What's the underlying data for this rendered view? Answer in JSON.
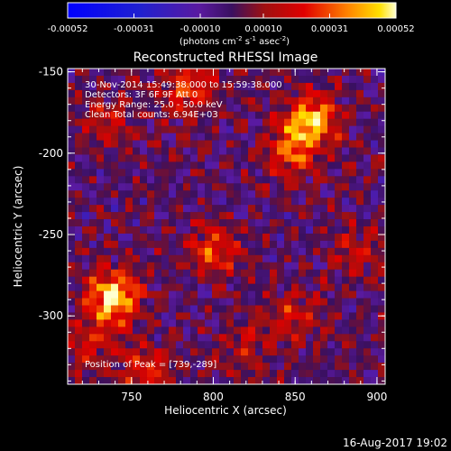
{
  "chart_data": {
    "type": "heatmap",
    "title": "Reconstructed RHESSI Image",
    "xlabel": "Heliocentric X (arcsec)",
    "ylabel": "Heliocentric Y (arcsec)",
    "xlim": [
      711,
      905
    ],
    "ylim": [
      -342,
      -148
    ],
    "xticks": [
      750,
      800,
      850,
      900
    ],
    "yticks": [
      -150,
      -200,
      -250,
      -300
    ],
    "colorbar": {
      "min": -0.00052,
      "max": 0.00052,
      "ticks": [
        "-0.00052",
        "-0.00031",
        "-0.00010",
        "0.00010",
        "0.00031",
        "0.00052"
      ],
      "unit_label": "(photons cm",
      "unit_exp1": "-2",
      "unit_mid": " s",
      "unit_exp2": "-1",
      "unit_mid2": " asec",
      "unit_exp3": "-2",
      "unit_close": ")"
    },
    "annotations": {
      "time": "30-Nov-2014 15:49:38.000 to 15:59:38.000",
      "detectors": "Detectors: 3F 6F 9F  Att 0",
      "energy": "Energy Range: 25.0 - 50.0 keV",
      "method": "Clean     Total counts: 6.94E+03",
      "peak": "Position of Peak = [739,-289]"
    },
    "peak": [
      739,
      -289
    ],
    "sources": [
      {
        "x": 739,
        "y": -289,
        "intensity": 0.00052
      },
      {
        "x": 860,
        "y": -180,
        "intensity": 0.00045
      },
      {
        "x": 848,
        "y": -200,
        "intensity": 0.0003
      },
      {
        "x": 785,
        "y": -160,
        "intensity": 0.0003
      },
      {
        "x": 800,
        "y": -260,
        "intensity": 0.00026
      },
      {
        "x": 850,
        "y": -300,
        "intensity": 0.0002
      },
      {
        "x": 760,
        "y": -335,
        "intensity": 0.00024
      },
      {
        "x": 725,
        "y": -320,
        "intensity": 0.00018
      },
      {
        "x": 890,
        "y": -260,
        "intensity": 0.00018
      },
      {
        "x": 735,
        "y": -180,
        "intensity": 0.00016
      },
      {
        "x": 820,
        "y": -320,
        "intensity": 0.00015
      }
    ],
    "grid": false
  },
  "footer": {
    "date": "16-Aug-2017 19:02"
  }
}
